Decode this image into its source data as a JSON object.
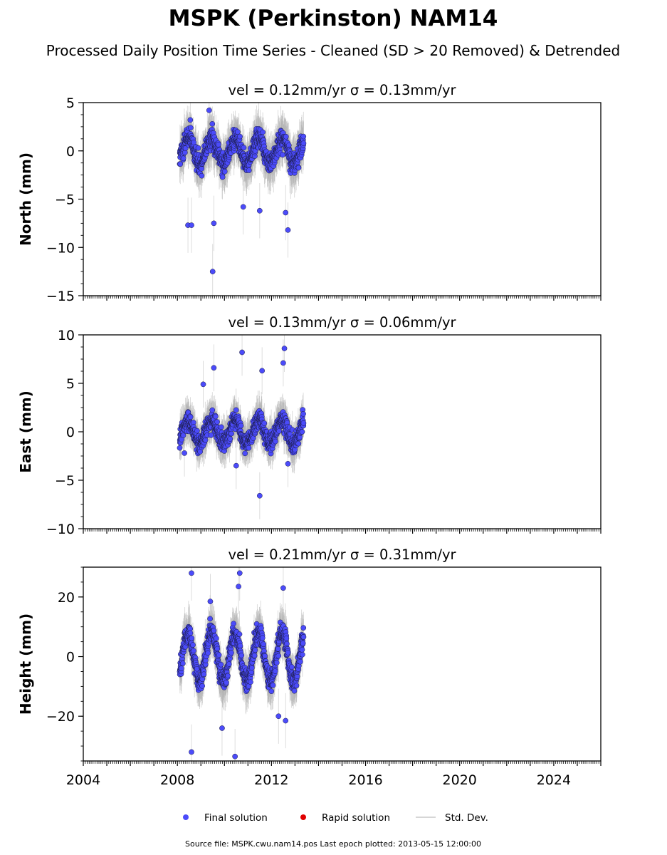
{
  "title": "MSPK (Perkinston) NAM14",
  "subtitle": "Processed Daily Position Time Series - Cleaned (SD > 20 Removed) & Detrended",
  "legend": {
    "final": "Final solution",
    "rapid": "Rapid solution",
    "sd": "Std. Dev."
  },
  "footer": "Source file: MSPK.cwu.nam14.pos  Last epoch plotted: 2013-05-15 12:00:00",
  "colors": {
    "final": "#4b4bfa",
    "rapid": "#e00000",
    "sd": "#b0b0b0"
  },
  "chart_data": [
    {
      "type": "scatter",
      "title": "vel = 0.12mm/yr   σ = 0.13mm/yr",
      "ylabel": "North (mm)",
      "xlim": [
        2004,
        2026
      ],
      "ylim": [
        -15,
        5
      ],
      "yticks": [
        5,
        0,
        -5,
        -10,
        -15
      ],
      "ytick_labels": [
        "5",
        "0",
        "−5",
        "−10",
        "−15"
      ],
      "data_span": [
        2008.1,
        2013.37
      ],
      "seasonal_amplitude": 1.3,
      "noise": 1.3,
      "outliers": [
        [
          2008.55,
          3.2
        ],
        [
          2009.35,
          4.2
        ],
        [
          2008.45,
          -7.7
        ],
        [
          2008.6,
          -7.7
        ],
        [
          2009.55,
          -7.5
        ],
        [
          2009.5,
          -12.5
        ],
        [
          2011.5,
          -6.2
        ],
        [
          2012.7,
          -8.2
        ],
        [
          2012.6,
          -6.4
        ],
        [
          2010.8,
          -5.8
        ]
      ]
    },
    {
      "type": "scatter",
      "title": "vel = 0.13mm/yr   σ = 0.06mm/yr",
      "ylabel": "East (mm)",
      "xlim": [
        2004,
        2026
      ],
      "ylim": [
        -10,
        10
      ],
      "yticks": [
        10,
        5,
        0,
        -5,
        -10
      ],
      "ytick_labels": [
        "10",
        "5",
        "0",
        "−5",
        "−10"
      ],
      "data_span": [
        2008.1,
        2013.37
      ],
      "seasonal_amplitude": 1.2,
      "noise": 1.1,
      "outliers": [
        [
          2010.75,
          8.2
        ],
        [
          2012.55,
          8.6
        ],
        [
          2012.5,
          7.1
        ],
        [
          2009.55,
          6.6
        ],
        [
          2011.5,
          -6.6
        ],
        [
          2010.5,
          -3.5
        ],
        [
          2012.7,
          -3.3
        ],
        [
          2009.1,
          4.9
        ],
        [
          2011.6,
          6.3
        ],
        [
          2008.3,
          -2.2
        ]
      ]
    },
    {
      "type": "scatter",
      "title": "vel = 0.21mm/yr   σ = 0.31mm/yr",
      "ylabel": "Height (mm)",
      "xlim": [
        2004,
        2026
      ],
      "ylim": [
        -35,
        30
      ],
      "yticks": [
        20,
        0,
        -20
      ],
      "ytick_labels": [
        "20",
        "0",
        "−20"
      ],
      "data_span": [
        2008.1,
        2013.37
      ],
      "seasonal_amplitude": 8,
      "noise": 4.2,
      "outliers": [
        [
          2008.6,
          28
        ],
        [
          2010.65,
          28
        ],
        [
          2008.6,
          -32
        ],
        [
          2010.45,
          -33.5
        ],
        [
          2012.5,
          23
        ],
        [
          2010.6,
          23.5
        ],
        [
          2009.9,
          -24
        ],
        [
          2012.3,
          -20
        ],
        [
          2012.6,
          -21.5
        ],
        [
          2009.4,
          18.5
        ]
      ]
    }
  ],
  "xaxis": {
    "ticks": [
      2004,
      2008,
      2012,
      2016,
      2020,
      2024
    ],
    "tick_labels": [
      "2004",
      "2008",
      "2012",
      "2016",
      "2020",
      "2024"
    ]
  }
}
